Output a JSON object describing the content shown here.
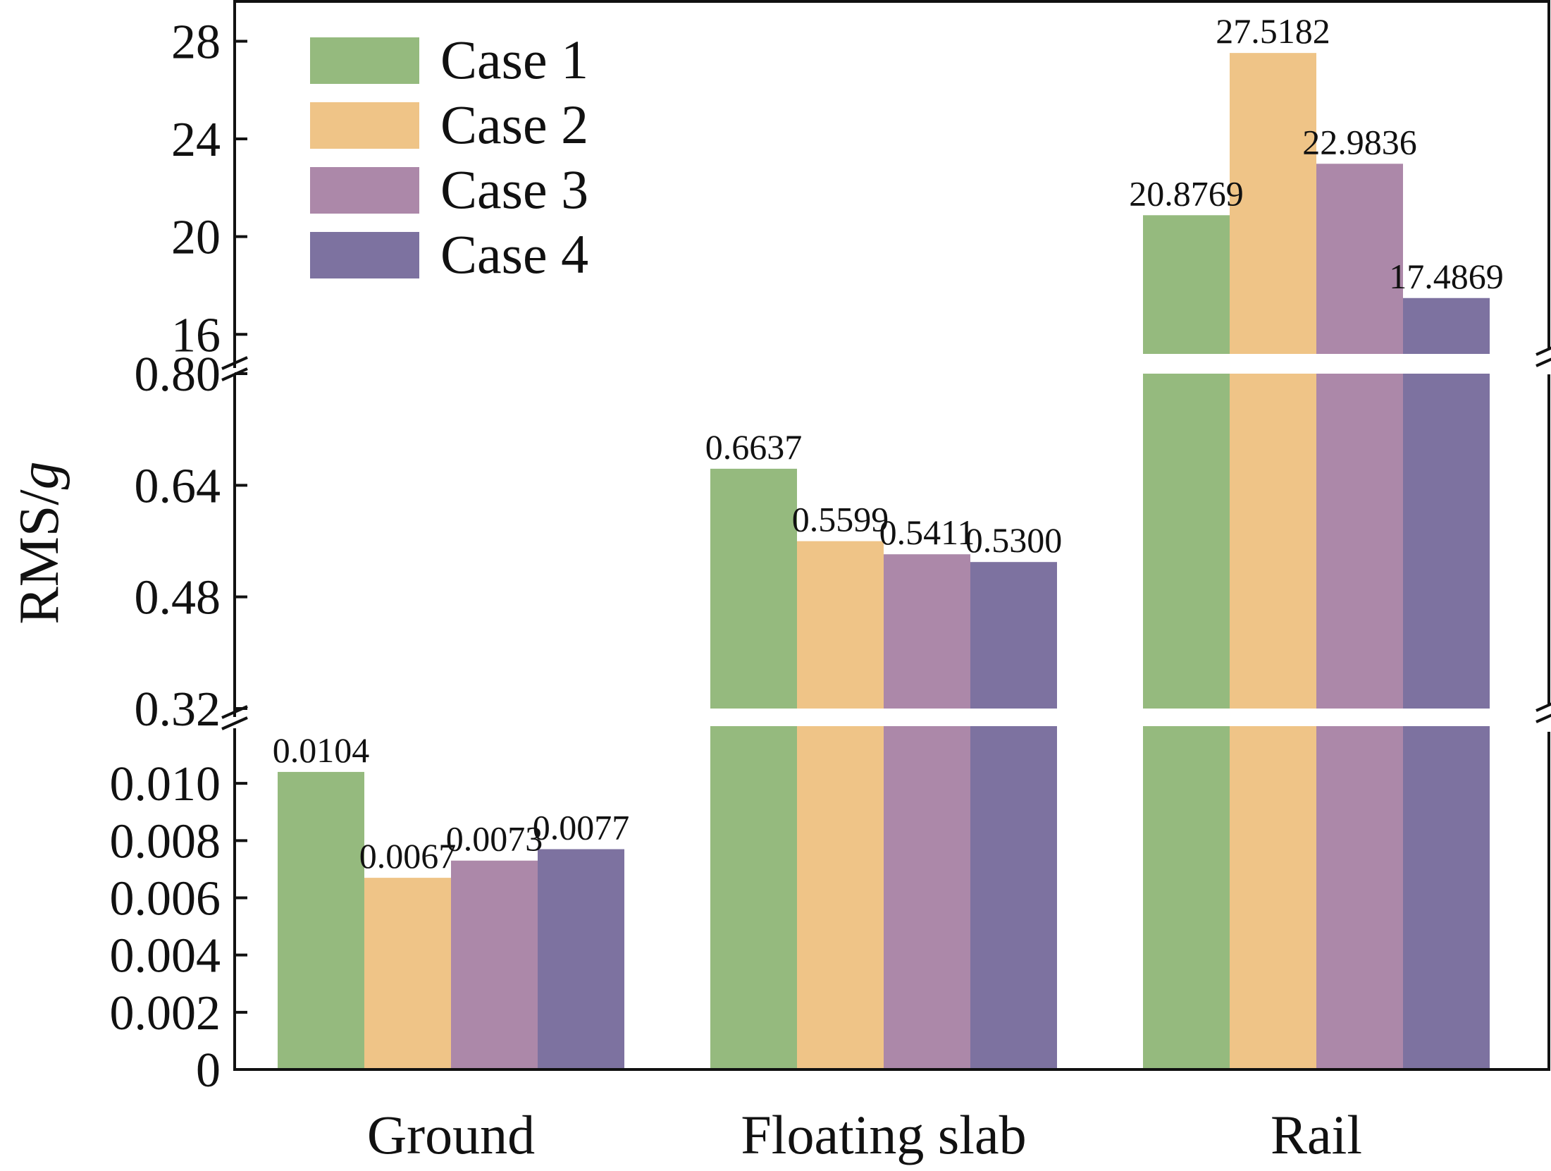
{
  "chart_data": {
    "type": "bar",
    "title": "",
    "ylabel": "RMS/",
    "ylabel_italic": "g",
    "xlabel": "",
    "categories": [
      "Ground",
      "Floating slab",
      "Rail"
    ],
    "series": [
      {
        "name": "Case 1",
        "color": "#95BA7E",
        "values": [
          0.0104,
          0.6637,
          20.8769
        ],
        "labels": [
          "0.0104",
          "0.6637",
          "20.8769"
        ]
      },
      {
        "name": "Case 2",
        "color": "#EFC487",
        "values": [
          0.0067,
          0.5599,
          27.5182
        ],
        "labels": [
          "0.0067",
          "0.5599",
          "27.5182"
        ]
      },
      {
        "name": "Case 3",
        "color": "#AC88A9",
        "values": [
          0.0073,
          0.5411,
          22.9836
        ],
        "labels": [
          "0.0073",
          "0.5411",
          "22.9836"
        ]
      },
      {
        "name": "Case 4",
        "color": "#7D72A0",
        "values": [
          0.0077,
          0.53,
          17.4869
        ],
        "labels": [
          "0.0077",
          "0.5300",
          "17.4869"
        ]
      }
    ],
    "broken_axis_segments": [
      {
        "range": [
          0,
          0.012
        ],
        "ticks": [
          0,
          0.002,
          0.004,
          0.006,
          0.008,
          0.01
        ],
        "tick_labels": [
          "0",
          "0.002",
          "0.004",
          "0.006",
          "0.008",
          "0.010"
        ]
      },
      {
        "range": [
          0.32,
          0.8
        ],
        "ticks": [
          0.32,
          0.48,
          0.64,
          0.8
        ],
        "tick_labels": [
          "0.32",
          "0.48",
          "0.64",
          "0.80"
        ]
      },
      {
        "range": [
          15.2,
          29.6
        ],
        "ticks": [
          16,
          20,
          24,
          28
        ],
        "tick_labels": [
          "16",
          "20",
          "24",
          "28"
        ]
      }
    ],
    "legend_position": "top-left"
  }
}
